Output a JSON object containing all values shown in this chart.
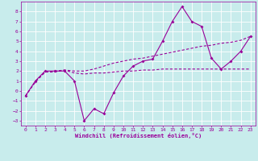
{
  "xlabel": "Windchill (Refroidissement éolien,°C)",
  "background_color": "#c8ecec",
  "grid_color": "#ffffff",
  "line_color": "#990099",
  "x_data": [
    0,
    1,
    2,
    3,
    4,
    5,
    6,
    7,
    8,
    9,
    10,
    11,
    12,
    13,
    14,
    15,
    16,
    17,
    18,
    19,
    20,
    21,
    22,
    23
  ],
  "y_main": [
    -0.5,
    1.0,
    2.0,
    2.0,
    2.0,
    1.0,
    -3.0,
    -1.8,
    -2.3,
    -0.2,
    1.5,
    2.5,
    3.0,
    3.2,
    5.0,
    7.0,
    8.5,
    7.0,
    6.5,
    3.3,
    2.2,
    3.0,
    4.0,
    5.5
  ],
  "y_line1": [
    -0.5,
    0.9,
    1.9,
    1.9,
    2.1,
    1.8,
    1.7,
    1.8,
    1.8,
    1.9,
    2.0,
    2.0,
    2.1,
    2.1,
    2.2,
    2.2,
    2.2,
    2.2,
    2.2,
    2.2,
    2.2,
    2.2,
    2.2,
    2.2
  ],
  "y_line2": [
    -0.5,
    0.9,
    1.9,
    2.0,
    2.1,
    2.0,
    2.0,
    2.2,
    2.5,
    2.8,
    3.0,
    3.2,
    3.3,
    3.5,
    3.7,
    3.9,
    4.1,
    4.3,
    4.5,
    4.6,
    4.8,
    4.9,
    5.1,
    5.5
  ],
  "ylim": [
    -3.5,
    9.0
  ],
  "xlim": [
    -0.5,
    23.5
  ],
  "yticks": [
    -3,
    -2,
    -1,
    0,
    1,
    2,
    3,
    4,
    5,
    6,
    7,
    8
  ],
  "xticks": [
    0,
    1,
    2,
    3,
    4,
    5,
    6,
    7,
    8,
    9,
    10,
    11,
    12,
    13,
    14,
    15,
    16,
    17,
    18,
    19,
    20,
    21,
    22,
    23
  ]
}
